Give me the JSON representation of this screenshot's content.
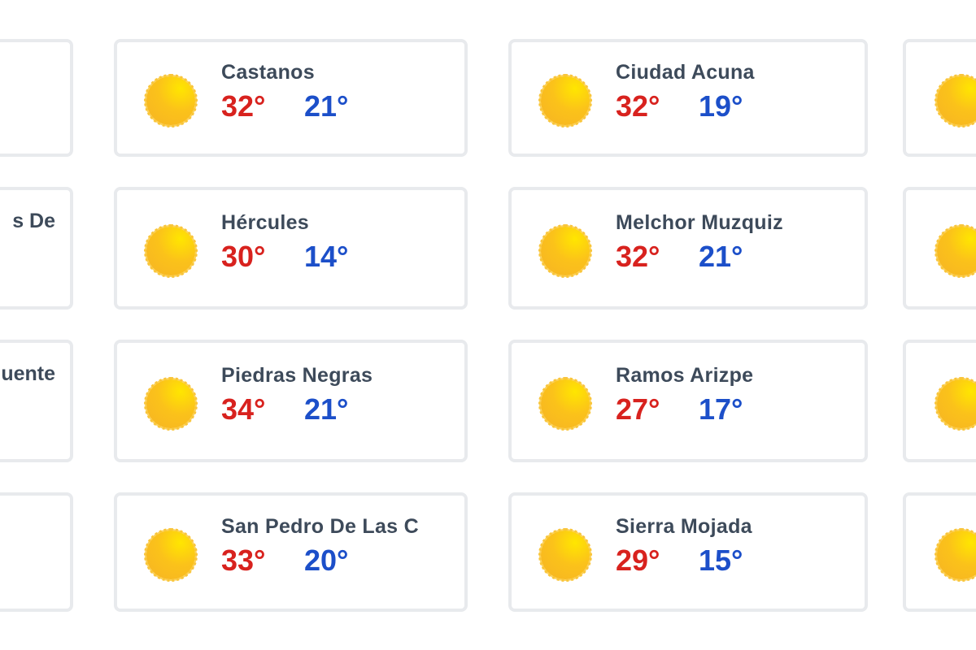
{
  "colors": {
    "high": "#d8221e",
    "low": "#1c4fc9",
    "name": "#3d4a5a",
    "border": "#e8eaed"
  },
  "icon": "sun-icon",
  "left_fragments": [
    "",
    "s De",
    "uente",
    ""
  ],
  "rows": [
    [
      {
        "name": "Castanos",
        "high": "32°",
        "low": "21°"
      },
      {
        "name": "Ciudad Acuna",
        "high": "32°",
        "low": "19°"
      }
    ],
    [
      {
        "name": "Hércules",
        "high": "30°",
        "low": "14°"
      },
      {
        "name": "Melchor Muzquiz",
        "high": "32°",
        "low": "21°"
      }
    ],
    [
      {
        "name": "Piedras Negras",
        "high": "34°",
        "low": "21°"
      },
      {
        "name": "Ramos Arizpe",
        "high": "27°",
        "low": "17°"
      }
    ],
    [
      {
        "name": "San Pedro De Las C",
        "high": "33°",
        "low": "20°"
      },
      {
        "name": "Sierra Mojada",
        "high": "29°",
        "low": "15°"
      }
    ]
  ]
}
